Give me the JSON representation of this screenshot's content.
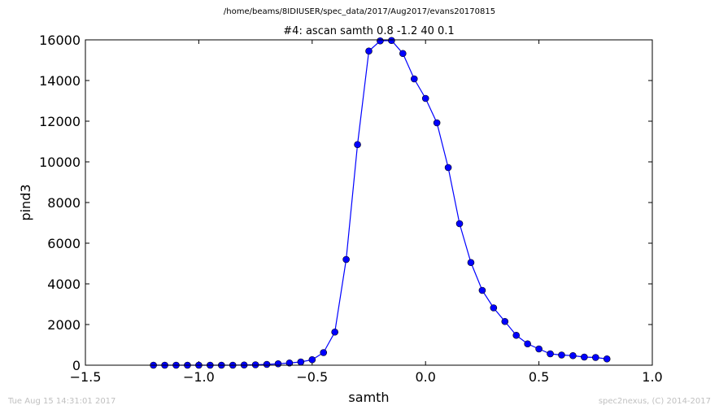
{
  "header": {
    "filepath": "/home/beams/8IDIUSER/spec_data/2017/Aug2017/evans20170815"
  },
  "footer": {
    "timestamp": "Tue Aug 15 14:31:01 2017",
    "credit": "spec2nexus, (C) 2014-2017"
  },
  "chart_data": {
    "type": "line",
    "title": "#4: ascan  samth 0.8 -1.2  40 0.1",
    "xlabel": "samth",
    "ylabel": "pind3",
    "xlim": [
      -1.5,
      1.0
    ],
    "ylim": [
      0,
      16000
    ],
    "xticks": [
      -1.5,
      -1.0,
      -0.5,
      0.0,
      0.5,
      1.0
    ],
    "xtick_labels": [
      "−1.5",
      "−1.0",
      "−0.5",
      "0.0",
      "0.5",
      "1.0"
    ],
    "yticks": [
      0,
      2000,
      4000,
      6000,
      8000,
      10000,
      12000,
      14000,
      16000
    ],
    "ytick_labels": [
      "0",
      "2000",
      "4000",
      "6000",
      "8000",
      "10000",
      "12000",
      "14000",
      "16000"
    ],
    "grid": false,
    "series": [
      {
        "color": "#0000ff",
        "marker": "circle",
        "x": [
          -1.2,
          -1.15,
          -1.1,
          -1.05,
          -1.0,
          -0.95,
          -0.9,
          -0.85,
          -0.8,
          -0.75,
          -0.7,
          -0.65,
          -0.6,
          -0.55,
          -0.5,
          -0.45,
          -0.4,
          -0.35,
          -0.3,
          -0.25,
          -0.2,
          -0.15,
          -0.1,
          -0.05,
          0.0,
          0.05,
          0.1,
          0.15,
          0.2,
          0.25,
          0.3,
          0.35,
          0.4,
          0.45,
          0.5,
          0.55,
          0.6,
          0.65,
          0.7,
          0.75,
          0.8
        ],
        "y": [
          0,
          0,
          0,
          0,
          0,
          0,
          0,
          0,
          10,
          20,
          40,
          70,
          110,
          160,
          270,
          620,
          1630,
          5200,
          10850,
          15450,
          15950,
          15970,
          15330,
          14080,
          13120,
          11920,
          9720,
          6960,
          5050,
          3680,
          2820,
          2150,
          1470,
          1050,
          800,
          560,
          500,
          470,
          400,
          380,
          310
        ]
      }
    ]
  }
}
